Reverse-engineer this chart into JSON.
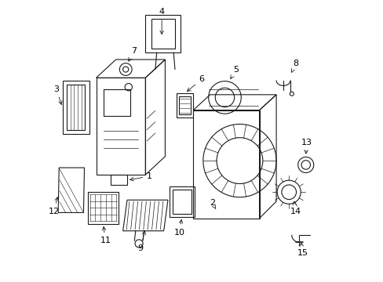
{
  "bg_color": "#ffffff",
  "line_color": "#1a1a1a",
  "figsize": [
    4.89,
    3.6
  ],
  "dpi": 100,
  "label_fontsize": 8
}
